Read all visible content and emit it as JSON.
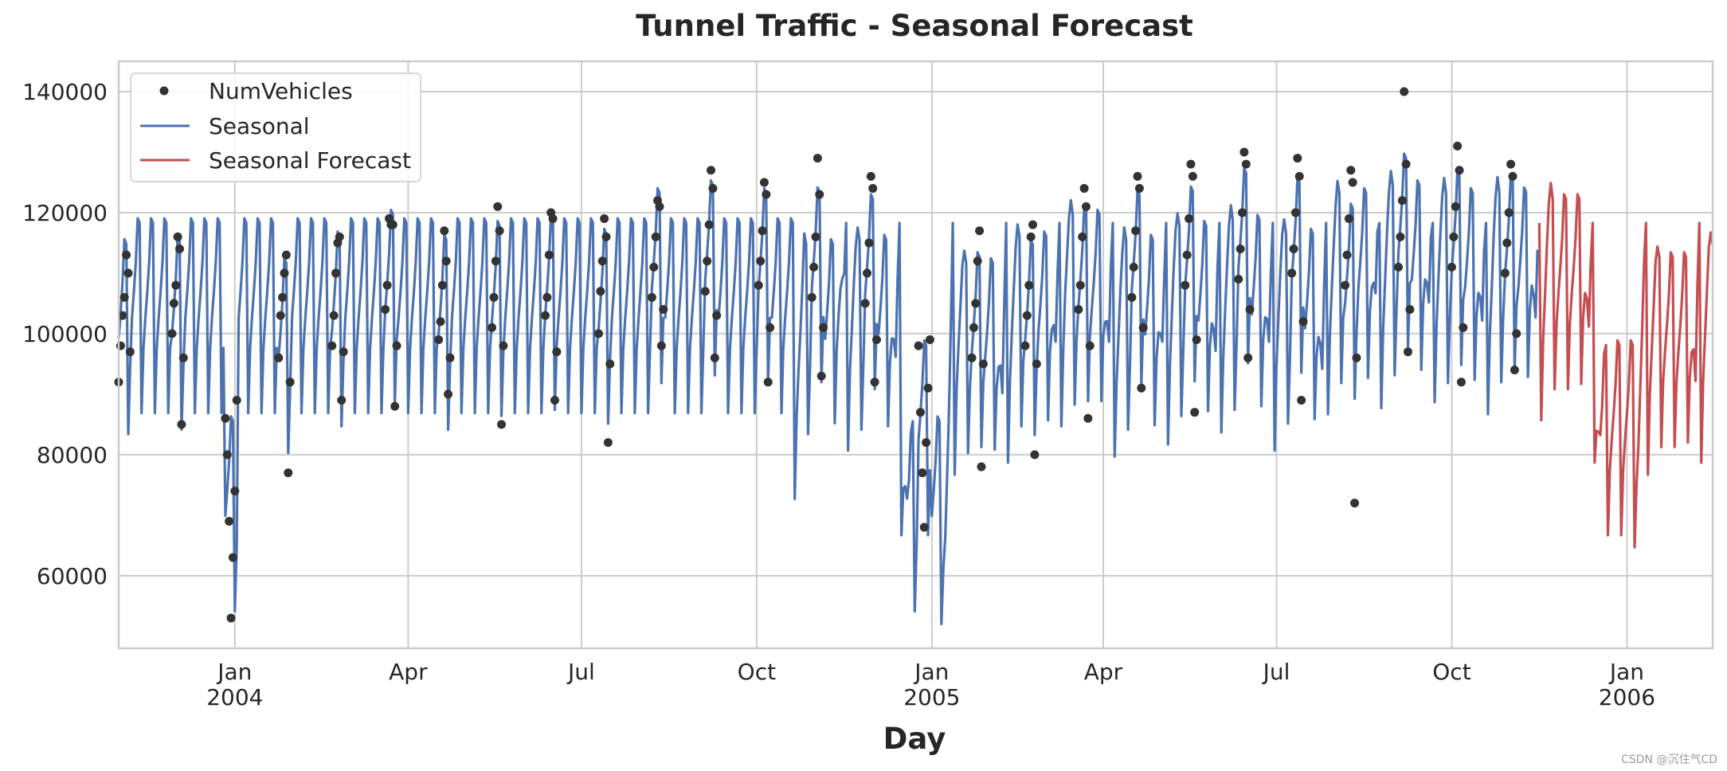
{
  "chart_data": {
    "type": "line",
    "title": "Tunnel Traffic - Seasonal Forecast",
    "xlabel": "Day",
    "ylabel": "",
    "xlim": [
      "2003-11-01",
      "2006-02-15"
    ],
    "ylim": [
      48000,
      145000
    ],
    "y_ticks": [
      60000,
      80000,
      100000,
      120000,
      140000
    ],
    "y_tick_labels": [
      "60000",
      "80000",
      "100000",
      "120000",
      "140000"
    ],
    "x_ticks": [
      {
        "date": "2004-01-01",
        "label": "Jan",
        "year": "2004"
      },
      {
        "date": "2004-04-01",
        "label": "Apr",
        "year": ""
      },
      {
        "date": "2004-07-01",
        "label": "Jul",
        "year": ""
      },
      {
        "date": "2004-10-01",
        "label": "Oct",
        "year": ""
      },
      {
        "date": "2005-01-01",
        "label": "Jan",
        "year": "2005"
      },
      {
        "date": "2005-04-01",
        "label": "Apr",
        "year": ""
      },
      {
        "date": "2005-07-01",
        "label": "Jul",
        "year": ""
      },
      {
        "date": "2005-10-01",
        "label": "Oct",
        "year": ""
      },
      {
        "date": "2006-01-01",
        "label": "Jan",
        "year": "2006"
      }
    ],
    "grid": true,
    "legend": {
      "placement": "upper-left",
      "entries": [
        {
          "label": "NumVehicles",
          "style": "dots",
          "color": "#333333"
        },
        {
          "label": "Seasonal",
          "style": "line",
          "color": "#4c72b0"
        },
        {
          "label": "Seasonal Forecast",
          "style": "line",
          "color": "#c44e52"
        }
      ]
    },
    "series": [
      {
        "name": "NumVehicles",
        "kind": "scatter",
        "color": "#333333",
        "points_weekly": [
          [
            "2003-11-01",
            92000,
            98000,
            103000,
            106000,
            113000,
            110000,
            97000
          ],
          [
            "2003-11-29",
            100000,
            105000,
            108000,
            116000,
            114000,
            85000,
            96000
          ],
          [
            "2003-12-27",
            86000,
            80000,
            69000,
            53000,
            63000,
            74000,
            89000
          ],
          [
            "2004-01-24",
            96000,
            103000,
            106000,
            110000,
            113000,
            77000,
            92000
          ],
          [
            "2004-02-21",
            98000,
            103000,
            110000,
            115000,
            116000,
            89000,
            97000
          ],
          [
            "2004-03-20",
            104000,
            108000,
            119000,
            118000,
            118000,
            88000,
            98000
          ],
          [
            "2004-04-17",
            99000,
            102000,
            108000,
            117000,
            112000,
            90000,
            96000
          ],
          [
            "2004-05-15",
            101000,
            106000,
            112000,
            121000,
            117000,
            85000,
            98000
          ],
          [
            "2004-06-12",
            103000,
            106000,
            113000,
            120000,
            119000,
            89000,
            97000
          ],
          [
            "2004-07-10",
            100000,
            107000,
            112000,
            119000,
            116000,
            82000,
            95000
          ],
          [
            "2004-08-07",
            106000,
            111000,
            116000,
            122000,
            121000,
            98000,
            104000
          ],
          [
            "2004-09-04",
            107000,
            112000,
            118000,
            127000,
            124000,
            96000,
            103000
          ],
          [
            "2004-10-02",
            108000,
            112000,
            117000,
            125000,
            123000,
            92000,
            101000
          ],
          [
            "2004-10-30",
            106000,
            111000,
            116000,
            129000,
            123000,
            93000,
            101000
          ],
          [
            "2004-11-27",
            105000,
            110000,
            115000,
            126000,
            124000,
            92000,
            99000
          ],
          [
            "2004-12-25",
            98000,
            87000,
            77000,
            68000,
            82000,
            91000,
            99000
          ],
          [
            "2005-01-22",
            96000,
            101000,
            105000,
            112000,
            117000,
            78000,
            95000
          ],
          [
            "2005-02-19",
            98000,
            103000,
            108000,
            116000,
            118000,
            80000,
            95000
          ],
          [
            "2005-03-19",
            104000,
            108000,
            116000,
            124000,
            121000,
            86000,
            98000
          ],
          [
            "2005-04-16",
            106000,
            111000,
            117000,
            126000,
            124000,
            91000,
            101000
          ],
          [
            "2005-05-14",
            108000,
            113000,
            119000,
            128000,
            126000,
            87000,
            99000
          ],
          [
            "2005-06-11",
            109000,
            114000,
            120000,
            130000,
            128000,
            96000,
            104000
          ],
          [
            "2005-07-09",
            110000,
            114000,
            120000,
            129000,
            126000,
            89000,
            102000
          ],
          [
            "2005-08-06",
            108000,
            113000,
            119000,
            127000,
            125000,
            72000,
            96000
          ],
          [
            "2005-09-03",
            111000,
            116000,
            122000,
            140000,
            128000,
            97000,
            104000
          ],
          [
            "2005-10-01",
            111000,
            116000,
            121000,
            131000,
            127000,
            92000,
            101000
          ],
          [
            "2005-10-29",
            110000,
            115000,
            120000,
            128000,
            126000,
            94000,
            100000
          ]
        ]
      },
      {
        "name": "Seasonal",
        "kind": "line",
        "color": "#4c72b0",
        "start": "2003-11-01",
        "end": "2005-11-15"
      },
      {
        "name": "Seasonal Forecast",
        "kind": "line",
        "color": "#c44e52",
        "start": "2005-11-16",
        "end": "2006-02-15"
      }
    ]
  },
  "watermark": "CSDN @沉住气CD"
}
